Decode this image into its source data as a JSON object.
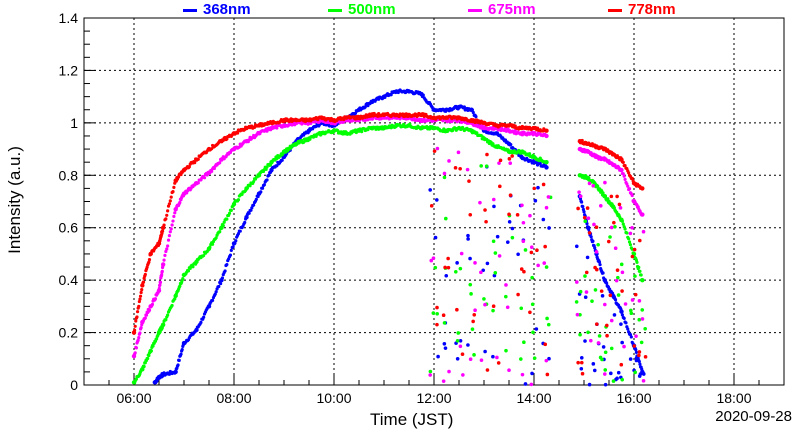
{
  "chart_data": {
    "type": "scatter",
    "xlabel": "Time (JST)",
    "ylabel": "Intensity (a.u.)",
    "date": "2020-09-28",
    "xlim": [
      "05:00",
      "19:00"
    ],
    "ylim": [
      0,
      1.4
    ],
    "x_ticks": [
      "06:00",
      "08:00",
      "10:00",
      "12:00",
      "14:00",
      "16:00",
      "18:00"
    ],
    "y_ticks": [
      "0",
      "0.2",
      "0.4",
      "0.6",
      "0.8",
      "1",
      "1.2",
      "1.4"
    ],
    "grid": true,
    "legend_position": "top",
    "series": [
      {
        "name": "368nm",
        "color": "#0000ff",
        "points": [
          [
            "06:25",
            0.01
          ],
          [
            "06:30",
            0.03
          ],
          [
            "06:35",
            0.04
          ],
          [
            "06:50",
            0.05
          ],
          [
            "07:00",
            0.16
          ],
          [
            "07:15",
            0.21
          ],
          [
            "07:30",
            0.3
          ],
          [
            "07:45",
            0.4
          ],
          [
            "08:00",
            0.54
          ],
          [
            "08:15",
            0.64
          ],
          [
            "08:30",
            0.73
          ],
          [
            "08:45",
            0.82
          ],
          [
            "09:00",
            0.87
          ],
          [
            "09:15",
            0.93
          ],
          [
            "09:30",
            0.97
          ],
          [
            "09:45",
            1.0
          ],
          [
            "10:00",
            0.99
          ],
          [
            "10:15",
            1.02
          ],
          [
            "10:30",
            1.05
          ],
          [
            "10:45",
            1.08
          ],
          [
            "11:00",
            1.1
          ],
          [
            "11:15",
            1.12
          ],
          [
            "11:30",
            1.12
          ],
          [
            "11:45",
            1.11
          ],
          [
            "12:00",
            1.05
          ],
          [
            "12:15",
            1.05
          ],
          [
            "12:30",
            1.06
          ],
          [
            "12:45",
            1.05
          ],
          [
            "13:00",
            0.97
          ],
          [
            "13:15",
            0.96
          ],
          [
            "13:30",
            0.92
          ],
          [
            "13:45",
            0.87
          ],
          [
            "14:00",
            0.85
          ],
          [
            "14:15",
            0.83
          ],
          [
            "14:55",
            0.72
          ],
          [
            "15:05",
            0.6
          ],
          [
            "15:15",
            0.5
          ],
          [
            "15:25",
            0.4
          ],
          [
            "15:35",
            0.34
          ],
          [
            "15:45",
            0.28
          ],
          [
            "16:00",
            0.15
          ],
          [
            "16:10",
            0.05
          ]
        ]
      },
      {
        "name": "500nm",
        "color": "#00ff00",
        "points": [
          [
            "06:00",
            0.01
          ],
          [
            "06:10",
            0.06
          ],
          [
            "06:20",
            0.13
          ],
          [
            "06:30",
            0.2
          ],
          [
            "06:35",
            0.23
          ],
          [
            "06:50",
            0.34
          ],
          [
            "07:00",
            0.42
          ],
          [
            "07:15",
            0.47
          ],
          [
            "07:30",
            0.52
          ],
          [
            "07:45",
            0.6
          ],
          [
            "08:00",
            0.69
          ],
          [
            "08:15",
            0.75
          ],
          [
            "08:30",
            0.8
          ],
          [
            "08:45",
            0.85
          ],
          [
            "09:00",
            0.89
          ],
          [
            "09:15",
            0.92
          ],
          [
            "09:30",
            0.94
          ],
          [
            "09:45",
            0.96
          ],
          [
            "10:00",
            0.97
          ],
          [
            "10:15",
            0.96
          ],
          [
            "10:30",
            0.97
          ],
          [
            "10:45",
            0.98
          ],
          [
            "11:00",
            0.98
          ],
          [
            "11:15",
            0.99
          ],
          [
            "11:30",
            0.99
          ],
          [
            "11:45",
            0.98
          ],
          [
            "12:00",
            0.98
          ],
          [
            "12:15",
            0.97
          ],
          [
            "12:30",
            0.98
          ],
          [
            "12:45",
            0.97
          ],
          [
            "13:00",
            0.94
          ],
          [
            "13:15",
            0.91
          ],
          [
            "13:30",
            0.89
          ],
          [
            "13:45",
            0.89
          ],
          [
            "14:00",
            0.87
          ],
          [
            "14:15",
            0.85
          ],
          [
            "14:55",
            0.8
          ],
          [
            "15:05",
            0.79
          ],
          [
            "15:15",
            0.76
          ],
          [
            "15:25",
            0.72
          ],
          [
            "15:35",
            0.68
          ],
          [
            "15:45",
            0.63
          ],
          [
            "16:00",
            0.5
          ],
          [
            "16:10",
            0.4
          ]
        ]
      },
      {
        "name": "675nm",
        "color": "#ff00ff",
        "points": [
          [
            "06:00",
            0.11
          ],
          [
            "06:10",
            0.24
          ],
          [
            "06:20",
            0.3
          ],
          [
            "06:30",
            0.36
          ],
          [
            "06:35",
            0.46
          ],
          [
            "06:50",
            0.67
          ],
          [
            "07:00",
            0.73
          ],
          [
            "07:15",
            0.77
          ],
          [
            "07:30",
            0.81
          ],
          [
            "07:45",
            0.86
          ],
          [
            "08:00",
            0.9
          ],
          [
            "08:15",
            0.93
          ],
          [
            "08:30",
            0.96
          ],
          [
            "08:45",
            0.98
          ],
          [
            "09:00",
            0.99
          ],
          [
            "09:15",
            1.0
          ],
          [
            "09:30",
            1.0
          ],
          [
            "09:45",
            1.01
          ],
          [
            "10:00",
            1.0
          ],
          [
            "10:15",
            1.01
          ],
          [
            "10:30",
            1.01
          ],
          [
            "10:45",
            1.02
          ],
          [
            "11:00",
            1.02
          ],
          [
            "11:15",
            1.02
          ],
          [
            "11:30",
            1.02
          ],
          [
            "11:45",
            1.01
          ],
          [
            "12:00",
            1.01
          ],
          [
            "12:15",
            1.01
          ],
          [
            "12:30",
            1.01
          ],
          [
            "12:45",
            1.0
          ],
          [
            "13:00",
            0.98
          ],
          [
            "13:15",
            0.98
          ],
          [
            "13:30",
            0.97
          ],
          [
            "13:45",
            0.96
          ],
          [
            "14:00",
            0.96
          ],
          [
            "14:15",
            0.95
          ],
          [
            "14:55",
            0.9
          ],
          [
            "15:05",
            0.89
          ],
          [
            "15:15",
            0.87
          ],
          [
            "15:25",
            0.86
          ],
          [
            "15:35",
            0.84
          ],
          [
            "15:45",
            0.82
          ],
          [
            "16:00",
            0.7
          ],
          [
            "16:10",
            0.65
          ]
        ]
      },
      {
        "name": "778nm",
        "color": "#ff0000",
        "points": [
          [
            "06:00",
            0.2
          ],
          [
            "06:10",
            0.38
          ],
          [
            "06:20",
            0.5
          ],
          [
            "06:30",
            0.54
          ],
          [
            "06:35",
            0.6
          ],
          [
            "06:50",
            0.78
          ],
          [
            "07:00",
            0.82
          ],
          [
            "07:15",
            0.86
          ],
          [
            "07:30",
            0.9
          ],
          [
            "07:45",
            0.93
          ],
          [
            "08:00",
            0.96
          ],
          [
            "08:15",
            0.98
          ],
          [
            "08:30",
            0.99
          ],
          [
            "08:45",
            1.0
          ],
          [
            "09:00",
            1.01
          ],
          [
            "09:15",
            1.01
          ],
          [
            "09:30",
            1.01
          ],
          [
            "09:45",
            1.02
          ],
          [
            "10:00",
            1.01
          ],
          [
            "10:15",
            1.02
          ],
          [
            "10:30",
            1.02
          ],
          [
            "10:45",
            1.03
          ],
          [
            "11:00",
            1.03
          ],
          [
            "11:15",
            1.03
          ],
          [
            "11:30",
            1.03
          ],
          [
            "11:45",
            1.03
          ],
          [
            "12:00",
            1.02
          ],
          [
            "12:15",
            1.02
          ],
          [
            "12:30",
            1.02
          ],
          [
            "12:45",
            1.01
          ],
          [
            "13:00",
            1.0
          ],
          [
            "13:15",
            0.99
          ],
          [
            "13:30",
            0.99
          ],
          [
            "13:45",
            0.98
          ],
          [
            "14:00",
            0.98
          ],
          [
            "14:15",
            0.97
          ],
          [
            "14:55",
            0.93
          ],
          [
            "15:05",
            0.92
          ],
          [
            "15:15",
            0.91
          ],
          [
            "15:25",
            0.9
          ],
          [
            "15:35",
            0.88
          ],
          [
            "15:45",
            0.86
          ],
          [
            "16:00",
            0.77
          ],
          [
            "16:10",
            0.75
          ]
        ]
      }
    ]
  }
}
